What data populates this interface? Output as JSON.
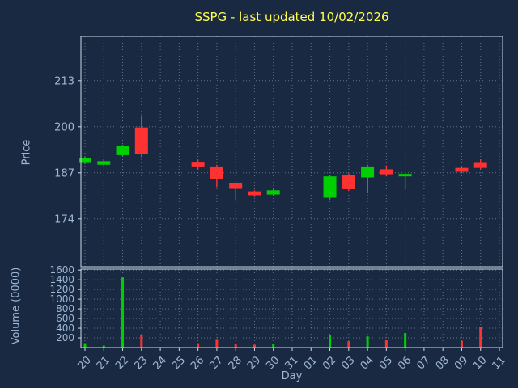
{
  "chart_data": {
    "type": "candlestick",
    "title": "SSPG - last updated 10/02/2026",
    "xlabel": "Day",
    "price_ylabel": "Price",
    "volume_ylabel": "Volume (0000)",
    "x_labels": [
      "20",
      "21",
      "22",
      "23",
      "24",
      "25",
      "26",
      "27",
      "28",
      "29",
      "30",
      "31",
      "01",
      "02",
      "03",
      "04",
      "05",
      "06",
      "07",
      "08",
      "09",
      "10",
      "11"
    ],
    "price_ticks": [
      174,
      187,
      200,
      213
    ],
    "volume_ticks": [
      200,
      400,
      600,
      800,
      1000,
      1200,
      1400,
      1600
    ],
    "price_range": [
      160.5,
      225.5
    ],
    "volume_range": [
      0,
      1620
    ],
    "legend": "none",
    "grid": "dotted",
    "colors": {
      "up": "#00d000",
      "down": "#ff3232",
      "background": "#1a2942",
      "text": "#9db8d6",
      "title": "#ffff4d",
      "grid": "#9aaec4",
      "border": "#cdd6e4"
    },
    "candles": [
      {
        "day": "20",
        "open": 189.8,
        "high": 191.5,
        "low": 189.5,
        "close": 191.2,
        "volume": 90
      },
      {
        "day": "21",
        "open": 189.3,
        "high": 190.8,
        "low": 189.0,
        "close": 190.3,
        "volume": 40
      },
      {
        "day": "22",
        "open": 192.0,
        "high": 194.9,
        "low": 191.7,
        "close": 194.5,
        "volume": 1450
      },
      {
        "day": "23",
        "open": 199.8,
        "high": 203.2,
        "low": 191.4,
        "close": 192.3,
        "volume": 260
      },
      {
        "day": "26",
        "open": 189.9,
        "high": 190.6,
        "low": 188.0,
        "close": 188.8,
        "volume": 90
      },
      {
        "day": "27",
        "open": 188.8,
        "high": 189.3,
        "low": 183.0,
        "close": 185.2,
        "volume": 160
      },
      {
        "day": "28",
        "open": 184.0,
        "high": 184.4,
        "low": 179.5,
        "close": 182.5,
        "volume": 70
      },
      {
        "day": "29",
        "open": 181.8,
        "high": 182.1,
        "low": 180.2,
        "close": 180.7,
        "volume": 60
      },
      {
        "day": "30",
        "open": 180.9,
        "high": 182.5,
        "low": 180.5,
        "close": 182.1,
        "volume": 70
      },
      {
        "day": "02",
        "open": 180.0,
        "high": 186.4,
        "low": 179.5,
        "close": 186.0,
        "volume": 260
      },
      {
        "day": "03",
        "open": 186.4,
        "high": 186.9,
        "low": 181.9,
        "close": 182.4,
        "volume": 130
      },
      {
        "day": "04",
        "open": 185.7,
        "high": 189.3,
        "low": 181.2,
        "close": 188.8,
        "volume": 230
      },
      {
        "day": "05",
        "open": 188.0,
        "high": 189.1,
        "low": 186.0,
        "close": 186.6,
        "volume": 150
      },
      {
        "day": "06",
        "open": 186.0,
        "high": 187.1,
        "low": 182.3,
        "close": 186.7,
        "volume": 300
      },
      {
        "day": "09",
        "open": 188.4,
        "high": 188.8,
        "low": 186.9,
        "close": 187.3,
        "volume": 140
      },
      {
        "day": "10",
        "open": 189.8,
        "high": 190.8,
        "low": 188.0,
        "close": 188.4,
        "volume": 430
      }
    ]
  }
}
